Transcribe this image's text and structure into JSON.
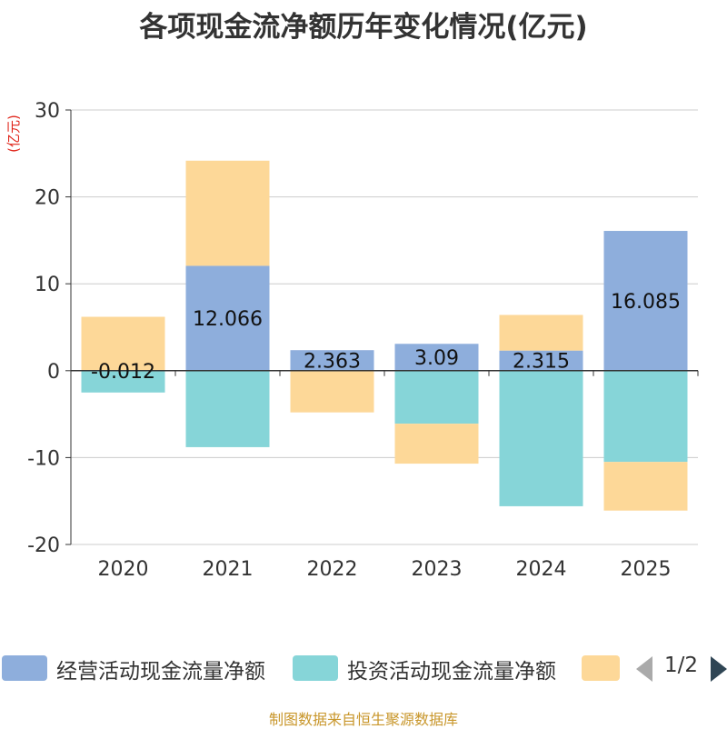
{
  "chart_data": {
    "type": "bar",
    "stacked": true,
    "title": "各项现金流净额历年变化情况(亿元)",
    "ylabel": "(亿元)",
    "ylim": [
      -20,
      30
    ],
    "yticks": [
      30,
      20,
      10,
      0,
      -10,
      -20
    ],
    "categories": [
      "2020",
      "2021",
      "2022",
      "2023",
      "2024",
      "2025"
    ],
    "series": [
      {
        "name": "经营活动现金流量净额",
        "color": "#8eaedc",
        "values": [
          -0.012,
          12.066,
          2.363,
          3.09,
          2.315,
          16.085
        ],
        "labels": [
          "-0.012",
          "12.066",
          "2.363",
          "3.09",
          "2.315",
          "16.085"
        ]
      },
      {
        "name": "投资活动现金流量净额",
        "color": "#86d5d8",
        "values": [
          -2.5,
          -8.8,
          0,
          -6.1,
          -15.6,
          -10.5
        ]
      },
      {
        "name": "",
        "color": "#fdd898",
        "values": [
          6.2,
          12.1,
          -4.8,
          -4.6,
          4.1,
          -5.6
        ]
      }
    ]
  },
  "legend": {
    "page": "1/2"
  },
  "footer": {
    "source": "制图数据来自恒生聚源数据库"
  }
}
